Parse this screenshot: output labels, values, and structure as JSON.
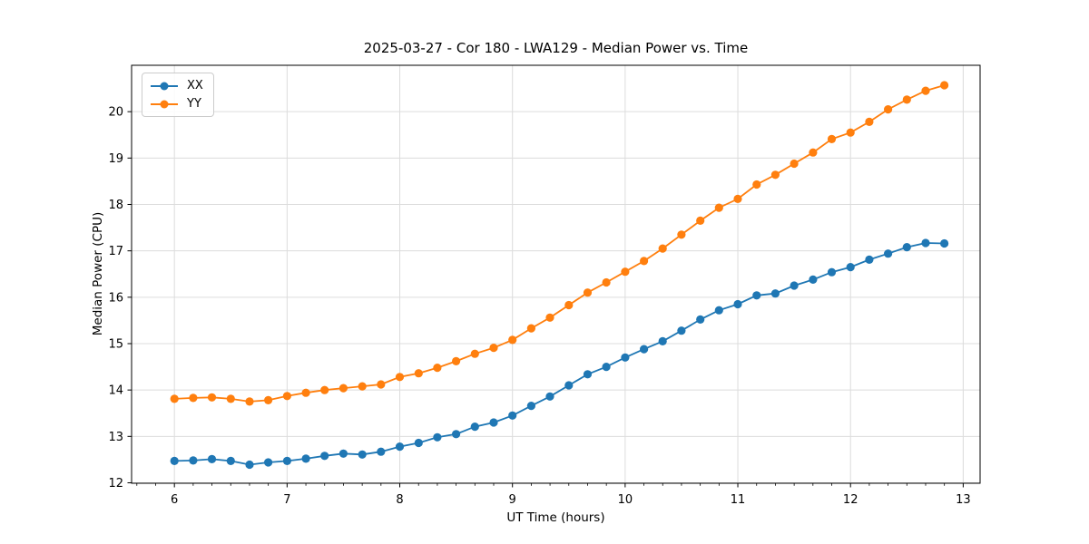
{
  "chart_data": {
    "type": "line",
    "title": "2025-03-27 - Cor 180 - LWA129 - Median Power vs. Time",
    "xlabel": "UT Time (hours)",
    "ylabel": "Median Power (CPU)",
    "x": [
      6.0,
      6.167,
      6.333,
      6.5,
      6.667,
      6.833,
      7.0,
      7.167,
      7.333,
      7.5,
      7.667,
      7.833,
      8.0,
      8.167,
      8.333,
      8.5,
      8.667,
      8.833,
      9.0,
      9.167,
      9.333,
      9.5,
      9.667,
      9.833,
      10.0,
      10.167,
      10.333,
      10.5,
      10.667,
      10.833,
      11.0,
      11.167,
      11.333,
      11.5,
      11.667,
      11.833,
      12.0,
      12.167,
      12.333,
      12.5,
      12.667,
      12.833
    ],
    "series": [
      {
        "name": "XX",
        "color": "#1f77b4",
        "values": [
          12.47,
          12.48,
          12.51,
          12.47,
          12.39,
          12.44,
          12.47,
          12.52,
          12.58,
          12.63,
          12.61,
          12.67,
          12.78,
          12.86,
          12.98,
          13.05,
          13.21,
          13.3,
          13.45,
          13.66,
          13.86,
          14.1,
          14.34,
          14.5,
          14.7,
          14.88,
          15.05,
          15.28,
          15.52,
          15.72,
          15.85,
          16.04,
          16.08,
          16.25,
          16.38,
          16.54,
          16.65,
          16.81,
          16.94,
          17.08,
          17.17,
          17.16
        ]
      },
      {
        "name": "YY",
        "color": "#ff7f0e",
        "values": [
          13.81,
          13.83,
          13.84,
          13.81,
          13.75,
          13.78,
          13.87,
          13.94,
          14.0,
          14.04,
          14.08,
          14.12,
          14.28,
          14.36,
          14.48,
          14.62,
          14.78,
          14.91,
          15.08,
          15.33,
          15.56,
          15.83,
          16.1,
          16.32,
          16.55,
          16.78,
          17.05,
          17.35,
          17.65,
          17.93,
          18.12,
          18.43,
          18.64,
          18.88,
          19.12,
          19.41,
          19.55,
          19.78,
          20.05,
          20.26,
          20.45,
          20.57
        ]
      }
    ],
    "xlim": [
      5.62,
      13.15
    ],
    "ylim": [
      11.99,
      21.0
    ],
    "xticks": [
      6,
      7,
      8,
      9,
      10,
      11,
      12,
      13
    ],
    "yticks": [
      12,
      13,
      14,
      15,
      16,
      17,
      18,
      19,
      20
    ],
    "x_minor_divisions": 6,
    "grid": true,
    "grid_color": "#dcdcdc",
    "legend_position": "upper left",
    "marker": "circle",
    "background": "#ffffff"
  }
}
